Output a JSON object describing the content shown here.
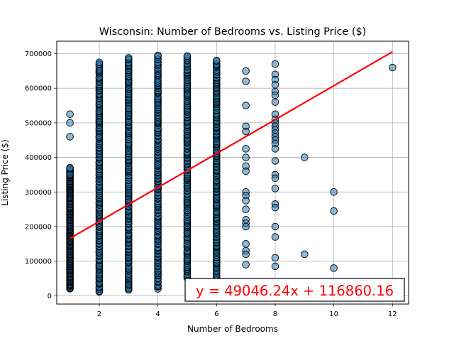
{
  "chart_data": {
    "type": "scatter",
    "title": "Wisconsin: Number of Bedrooms vs. Listing Price ($)",
    "xlabel": "Number of Bedrooms",
    "ylabel": "Listing Price ($)",
    "xlim": [
      0.55,
      12.55
    ],
    "ylim": [
      -24000,
      736000
    ],
    "xticks": [
      2,
      4,
      6,
      8,
      10,
      12
    ],
    "yticks": [
      0,
      100000,
      200000,
      300000,
      400000,
      500000,
      600000,
      700000
    ],
    "grid": true,
    "point_color": "#1f77b4",
    "line_color": "#ff0000",
    "regression": {
      "slope": 49046.24,
      "intercept": 116860.16,
      "equation": "y = 49046.24x + 116860.16",
      "x_range": [
        1,
        12
      ]
    },
    "columns": [
      {
        "x": 1,
        "range": [
          20000,
          370000
        ]
      },
      {
        "x": 2,
        "range": [
          10000,
          675000
        ]
      },
      {
        "x": 3,
        "range": [
          15000,
          690000
        ]
      },
      {
        "x": 4,
        "range": [
          20000,
          695000
        ]
      },
      {
        "x": 5,
        "range": [
          50000,
          695000
        ]
      },
      {
        "x": 6,
        "range": [
          40000,
          680000
        ]
      }
    ],
    "points": [
      {
        "x": 1,
        "y": 525000
      },
      {
        "x": 1,
        "y": 500000
      },
      {
        "x": 1,
        "y": 460000
      },
      {
        "x": 1,
        "y": 370000
      },
      {
        "x": 1,
        "y": 350000
      },
      {
        "x": 7,
        "y": 650000
      },
      {
        "x": 7,
        "y": 620000
      },
      {
        "x": 7,
        "y": 550000
      },
      {
        "x": 7,
        "y": 490000
      },
      {
        "x": 7,
        "y": 475000
      },
      {
        "x": 7,
        "y": 425000
      },
      {
        "x": 7,
        "y": 400000
      },
      {
        "x": 7,
        "y": 375000
      },
      {
        "x": 7,
        "y": 360000
      },
      {
        "x": 7,
        "y": 300000
      },
      {
        "x": 7,
        "y": 290000
      },
      {
        "x": 7,
        "y": 275000
      },
      {
        "x": 7,
        "y": 250000
      },
      {
        "x": 7,
        "y": 220000
      },
      {
        "x": 7,
        "y": 210000
      },
      {
        "x": 7,
        "y": 200000
      },
      {
        "x": 7,
        "y": 150000
      },
      {
        "x": 7,
        "y": 130000
      },
      {
        "x": 7,
        "y": 120000
      },
      {
        "x": 7,
        "y": 90000
      },
      {
        "x": 8,
        "y": 670000
      },
      {
        "x": 8,
        "y": 640000
      },
      {
        "x": 8,
        "y": 625000
      },
      {
        "x": 8,
        "y": 610000
      },
      {
        "x": 8,
        "y": 590000
      },
      {
        "x": 8,
        "y": 580000
      },
      {
        "x": 8,
        "y": 560000
      },
      {
        "x": 8,
        "y": 525000
      },
      {
        "x": 8,
        "y": 510000
      },
      {
        "x": 8,
        "y": 500000
      },
      {
        "x": 8,
        "y": 490000
      },
      {
        "x": 8,
        "y": 480000
      },
      {
        "x": 8,
        "y": 470000
      },
      {
        "x": 8,
        "y": 460000
      },
      {
        "x": 8,
        "y": 450000
      },
      {
        "x": 8,
        "y": 440000
      },
      {
        "x": 8,
        "y": 425000
      },
      {
        "x": 8,
        "y": 390000
      },
      {
        "x": 8,
        "y": 350000
      },
      {
        "x": 8,
        "y": 340000
      },
      {
        "x": 8,
        "y": 310000
      },
      {
        "x": 8,
        "y": 265000
      },
      {
        "x": 8,
        "y": 255000
      },
      {
        "x": 8,
        "y": 200000
      },
      {
        "x": 8,
        "y": 170000
      },
      {
        "x": 8,
        "y": 110000
      },
      {
        "x": 8,
        "y": 85000
      },
      {
        "x": 9,
        "y": 400000
      },
      {
        "x": 9,
        "y": 120000
      },
      {
        "x": 10,
        "y": 300000
      },
      {
        "x": 10,
        "y": 245000
      },
      {
        "x": 10,
        "y": 80000
      },
      {
        "x": 12,
        "y": 660000
      }
    ]
  }
}
